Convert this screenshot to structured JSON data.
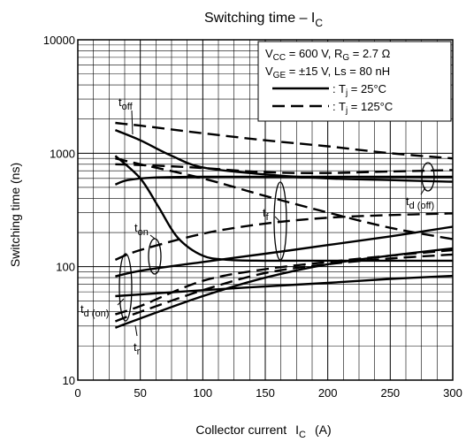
{
  "chart_data": {
    "type": "line",
    "title": "Switching time – I",
    "title_sub": "C",
    "xlabel": "Collector current",
    "xlabel_sym": "I",
    "xlabel_sub": "C",
    "xlabel_unit": "(A)",
    "ylabel": "Switching time   (ns)",
    "xlim": [
      0,
      300
    ],
    "ylim": [
      10,
      10000
    ],
    "yscale": "log",
    "grid": true,
    "x_ticks": [
      "0",
      "50",
      "100",
      "150",
      "200",
      "250",
      "300"
    ],
    "y_ticks": [
      "10",
      "100",
      "1000",
      "10000"
    ],
    "legend": {
      "placement": "top-right",
      "conditions": [
        {
          "parts": [
            [
              "V",
              ""
            ],
            [
              "CC",
              "sub"
            ],
            [
              " = 600 V, R",
              ""
            ],
            [
              "G",
              "sub"
            ],
            [
              " = 2.7 Ω",
              ""
            ]
          ]
        },
        {
          "parts": [
            [
              "V",
              ""
            ],
            [
              "GE",
              "sub"
            ],
            [
              " = ±15 V, Ls = 80 nH",
              ""
            ]
          ]
        }
      ],
      "entries": [
        {
          "style": "solid",
          "parts": [
            [
              ": T",
              ""
            ],
            [
              "j",
              "sub"
            ],
            [
              " = 25°C",
              ""
            ]
          ]
        },
        {
          "style": "dashed",
          "parts": [
            [
              ": T",
              ""
            ],
            [
              "j",
              "sub"
            ],
            [
              " = 125°C",
              ""
            ]
          ]
        }
      ]
    },
    "annotations": [
      {
        "main": "t",
        "sub": "off"
      },
      {
        "main": "t",
        "sub": "on"
      },
      {
        "main": "t",
        "sub": "f"
      },
      {
        "main": "t",
        "sub": "d (on)"
      },
      {
        "main": "t",
        "sub": "d (off)"
      },
      {
        "main": "t",
        "sub": "r"
      }
    ],
    "series": [
      {
        "curve": "toff",
        "tj": "25°C",
        "style": "solid",
        "x": [
          30,
          50,
          75,
          100,
          150,
          200,
          250,
          300
        ],
        "y": [
          1600,
          1300,
          950,
          750,
          650,
          600,
          580,
          560
        ]
      },
      {
        "curve": "toff",
        "tj": "125°C",
        "style": "dashed",
        "x": [
          30,
          50,
          100,
          150,
          200,
          250,
          300
        ],
        "y": [
          1850,
          1750,
          1500,
          1300,
          1150,
          1000,
          900
        ]
      },
      {
        "curve": "td_off",
        "tj": "25°C",
        "style": "solid",
        "x": [
          30,
          40,
          60,
          100,
          150,
          200,
          250,
          300
        ],
        "y": [
          530,
          580,
          610,
          620,
          620,
          620,
          620,
          620
        ]
      },
      {
        "curve": "td_off",
        "tj": "125°C",
        "style": "dashed",
        "x": [
          30,
          60,
          100,
          150,
          200,
          250,
          300
        ],
        "y": [
          800,
          780,
          740,
          680,
          670,
          690,
          710
        ]
      },
      {
        "curve": "tf",
        "tj": "25°C",
        "style": "solid",
        "x": [
          30,
          50,
          65,
          80,
          100,
          120,
          150,
          200,
          250,
          300
        ],
        "y": [
          950,
          600,
          330,
          180,
          125,
          115,
          113,
          113,
          113,
          113
        ]
      },
      {
        "curve": "tf",
        "tj": "125°C",
        "style": "dashed",
        "x": [
          30,
          50,
          100,
          150,
          200,
          250,
          300
        ],
        "y": [
          900,
          800,
          600,
          420,
          300,
          220,
          175
        ]
      },
      {
        "curve": "ton",
        "tj": "25°C",
        "style": "solid",
        "x": [
          30,
          50,
          100,
          150,
          200,
          250,
          300
        ],
        "y": [
          82,
          92,
          110,
          130,
          155,
          185,
          225
        ]
      },
      {
        "curve": "ton",
        "tj": "125°C",
        "style": "dashed",
        "x": [
          30,
          50,
          100,
          150,
          200,
          250,
          300
        ],
        "y": [
          115,
          140,
          195,
          240,
          270,
          285,
          295
        ]
      },
      {
        "curve": "td_on",
        "tj": "25°C",
        "style": "solid",
        "x": [
          30,
          100,
          150,
          200,
          250,
          300
        ],
        "y": [
          55,
          62,
          67,
          72,
          78,
          83
        ]
      },
      {
        "curve": "td_on",
        "tj": "125°C",
        "style": "dashed",
        "x": [
          30,
          50,
          100,
          150,
          200,
          250,
          300
        ],
        "y": [
          38,
          45,
          75,
          95,
          110,
          125,
          140
        ]
      },
      {
        "curve": "tr",
        "tj": "25°C",
        "style": "solid",
        "x": [
          30,
          50,
          100,
          150,
          200,
          250,
          300
        ],
        "y": [
          29,
          35,
          55,
          80,
          105,
          125,
          145
        ]
      },
      {
        "curve": "tr",
        "tj": "125°C",
        "style": "dashed",
        "x": [
          30,
          50,
          100,
          150,
          200,
          250,
          300
        ],
        "y": [
          33,
          40,
          62,
          88,
          105,
          118,
          128
        ]
      }
    ]
  }
}
